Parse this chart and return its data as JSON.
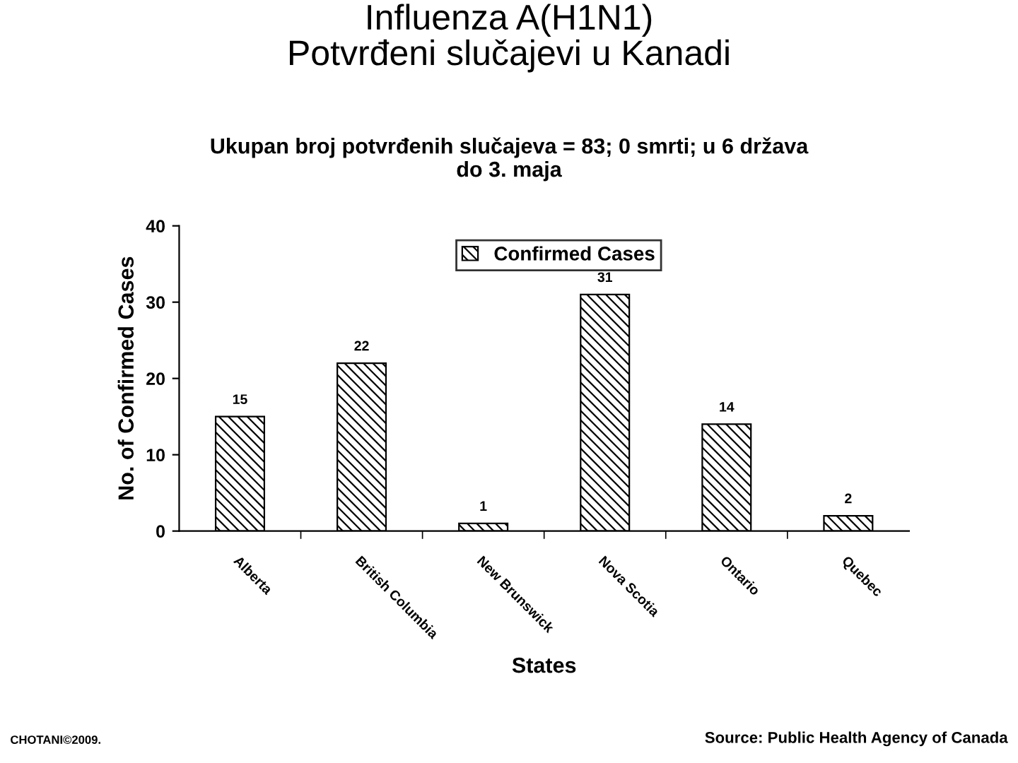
{
  "chart_data": {
    "type": "bar",
    "title": "Influenza A(H1N1)\nPotvrđeni slučajevi u Kanadi",
    "subtitle": "Ukupan broj potvrđenih slučajeva = 83; 0 smrti; u 6 država\ndo 3. maja",
    "categories": [
      "Alberta",
      "British Columbia",
      "New Brunswick",
      "Nova Scotia",
      "Ontario",
      "Quebec"
    ],
    "series": [
      {
        "name": "Confirmed Cases",
        "color": "#000000",
        "values": [
          15,
          22,
          1,
          31,
          14,
          2
        ]
      }
    ],
    "xlabel": "States",
    "ylabel": "No. of Confirmed Cases",
    "ylim": [
      0,
      40
    ],
    "yticks": [
      0,
      10,
      20,
      30,
      40
    ],
    "data_labels": true,
    "legend": "top",
    "grid": false,
    "annotations": [
      "CHOTANI©2009.",
      "Source: Public Health Agency of Canada"
    ]
  }
}
